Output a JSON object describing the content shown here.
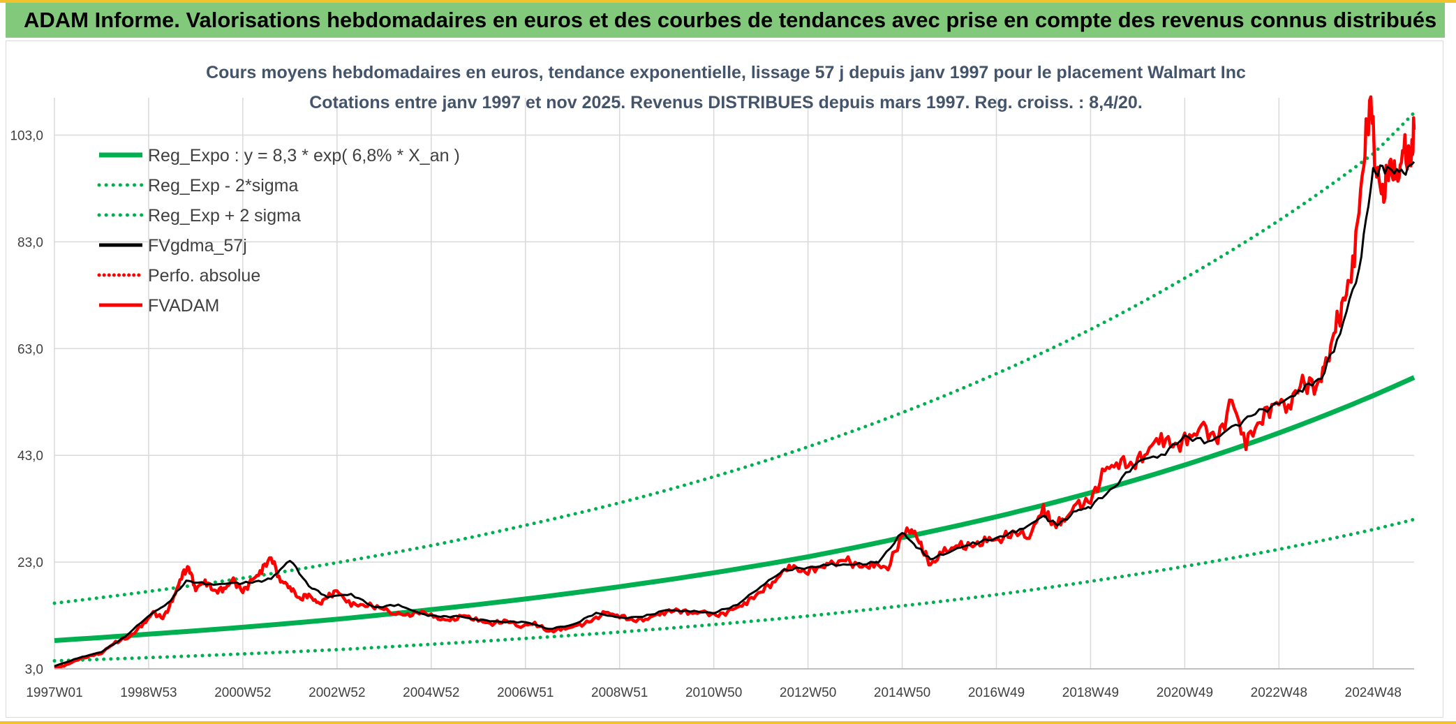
{
  "banner": {
    "title": "ADAM Informe. Valorisations hebdomadaires en euros et des courbes de tendances avec prise en compte des revenus connus distribués"
  },
  "colors": {
    "banner_bg": "#82c97b",
    "frame_accent": "#f2c12e",
    "reg_green": "#00b050",
    "smooth_black": "#000000",
    "adam_red": "#ff0000",
    "title_text": "#44546a",
    "grid": "#d9d9d9"
  },
  "chart_data": {
    "type": "line",
    "title": "Cours moyens hebdomadaires en euros, tendance exponentielle, lissage 57 j depuis janv 1997 pour le placement Walmart Inc",
    "subtitle": "Cotations entre janv 1997 et nov 2025. Revenus DISTRIBUES depuis mars 1997. Reg. croiss. : 8,4/20.",
    "xlabel": "",
    "ylabel": "",
    "xlim": [
      1997.0,
      2025.87
    ],
    "ylim": [
      3.0,
      110.0
    ],
    "yticks": [
      "3,0",
      "23,0",
      "43,0",
      "63,0",
      "83,0",
      "103,0"
    ],
    "ytick_values": [
      3,
      23,
      43,
      63,
      83,
      103
    ],
    "xticks": [
      "1997W01",
      "1998W53",
      "2000W52",
      "2002W52",
      "2004W52",
      "2006W51",
      "2008W51",
      "2010W50",
      "2012W50",
      "2014W50",
      "2016W49",
      "2018W49",
      "2020W49",
      "2022W48",
      "2024W48"
    ],
    "xtick_values": [
      1997.0,
      1999.0,
      2001.0,
      2003.0,
      2005.0,
      2007.0,
      2009.0,
      2011.0,
      2013.0,
      2015.0,
      2017.0,
      2019.0,
      2021.0,
      2023.0,
      2025.0
    ],
    "grid": true,
    "legend_position": "top-left",
    "series": [
      {
        "name": "Reg_Expo : y = 8,3 * exp( 6,8% *  X_an )",
        "style": "solid-green",
        "x": [
          1997.0,
          1999.0,
          2001.0,
          2003.0,
          2005.0,
          2007.0,
          2009.0,
          2011.0,
          2013.0,
          2015.0,
          2017.0,
          2019.0,
          2021.0,
          2023.0,
          2025.0,
          2025.87
        ],
        "values": [
          8.3,
          9.5,
          10.8,
          12.3,
          14.1,
          16.1,
          18.4,
          21.0,
          24.0,
          27.6,
          31.5,
          36.0,
          41.2,
          47.2,
          54.2,
          57.6
        ]
      },
      {
        "name": "Reg_Exp - 2*sigma",
        "style": "dotted-green",
        "x": [
          1997.0,
          1999.0,
          2001.0,
          2003.0,
          2005.0,
          2007.0,
          2009.0,
          2011.0,
          2013.0,
          2015.0,
          2017.0,
          2019.0,
          2021.0,
          2023.0,
          2025.0,
          2025.87
        ],
        "values": [
          4.5,
          5.1,
          5.8,
          6.6,
          7.6,
          8.7,
          9.9,
          11.3,
          12.9,
          14.8,
          16.9,
          19.4,
          22.2,
          25.4,
          29.1,
          31.0
        ]
      },
      {
        "name": "Reg_Exp + 2 sigma",
        "style": "dotted-green",
        "x": [
          1997.0,
          1999.0,
          2001.0,
          2003.0,
          2005.0,
          2007.0,
          2009.0,
          2011.0,
          2013.0,
          2015.0,
          2017.0,
          2019.0,
          2021.0,
          2023.0,
          2025.0,
          2025.87
        ],
        "values": [
          15.3,
          17.5,
          20.0,
          22.9,
          26.1,
          29.9,
          34.1,
          39.0,
          44.6,
          51.0,
          58.3,
          66.6,
          76.2,
          87.0,
          99.5,
          107.2
        ]
      },
      {
        "name": "FVgdma_57j",
        "style": "solid-black",
        "x": [
          1997.0,
          1997.5,
          1998.0,
          1998.5,
          1999.0,
          1999.4,
          1999.8,
          2000.3,
          2000.8,
          2001.2,
          2001.6,
          2002.0,
          2002.4,
          2002.8,
          2003.3,
          2003.8,
          2004.3,
          2004.8,
          2005.2,
          2005.6,
          2006.0,
          2006.5,
          2007.0,
          2007.5,
          2008.0,
          2008.5,
          2009.0,
          2009.5,
          2010.0,
          2010.5,
          2011.0,
          2011.5,
          2012.0,
          2012.5,
          2013.0,
          2013.5,
          2014.0,
          2014.5,
          2015.0,
          2015.3,
          2015.6,
          2016.0,
          2016.5,
          2017.0,
          2017.5,
          2018.0,
          2018.3,
          2018.7,
          2019.0,
          2019.5,
          2020.0,
          2020.5,
          2021.0,
          2021.5,
          2022.0,
          2022.5,
          2023.0,
          2023.5,
          2023.9,
          2024.3,
          2024.7,
          2025.0,
          2025.3,
          2025.6,
          2025.87
        ],
        "values": [
          3.5,
          5.0,
          6.2,
          9.0,
          13.0,
          15.2,
          19.5,
          18.8,
          19.0,
          19.2,
          19.8,
          23.5,
          18.5,
          16.5,
          17.0,
          14.5,
          15.0,
          13.2,
          12.8,
          12.8,
          12.2,
          11.8,
          11.8,
          10.5,
          11.2,
          13.5,
          12.5,
          12.8,
          14.0,
          13.8,
          13.5,
          15.0,
          18.5,
          21.5,
          22.0,
          22.5,
          22.5,
          23.0,
          28.5,
          26.0,
          23.5,
          25.0,
          26.5,
          27.5,
          29.0,
          31.5,
          30.0,
          32.5,
          33.5,
          37.0,
          42.0,
          43.0,
          46.5,
          45.5,
          48.0,
          51.0,
          52.5,
          55.5,
          57.5,
          66.0,
          78.0,
          96.0,
          97.0,
          95.5,
          98.0
        ]
      },
      {
        "name": "Perfo. absolue",
        "style": "dotted-red",
        "x": [],
        "values": []
      },
      {
        "name": "FVADAM",
        "style": "solid-red",
        "x": [
          1997.0,
          1997.2,
          1997.5,
          1997.8,
          1998.0,
          1998.3,
          1998.6,
          1998.9,
          1999.1,
          1999.3,
          1999.5,
          1999.7,
          1999.85,
          2000.0,
          2000.2,
          2000.4,
          2000.6,
          2000.8,
          2001.0,
          2001.2,
          2001.4,
          2001.6,
          2001.8,
          2002.0,
          2002.2,
          2002.4,
          2002.6,
          2002.8,
          2003.0,
          2003.3,
          2003.6,
          2003.9,
          2004.2,
          2004.5,
          2004.8,
          2005.1,
          2005.4,
          2005.7,
          2006.0,
          2006.3,
          2006.6,
          2006.9,
          2007.2,
          2007.5,
          2007.8,
          2008.1,
          2008.4,
          2008.7,
          2009.0,
          2009.3,
          2009.6,
          2009.9,
          2010.2,
          2010.5,
          2010.8,
          2011.1,
          2011.4,
          2011.7,
          2012.0,
          2012.3,
          2012.6,
          2012.9,
          2013.2,
          2013.5,
          2013.8,
          2014.1,
          2014.4,
          2014.7,
          2015.0,
          2015.2,
          2015.4,
          2015.6,
          2015.9,
          2016.2,
          2016.5,
          2016.8,
          2017.1,
          2017.4,
          2017.7,
          2018.0,
          2018.2,
          2018.4,
          2018.7,
          2019.0,
          2019.3,
          2019.6,
          2019.9,
          2020.2,
          2020.5,
          2020.8,
          2021.1,
          2021.4,
          2021.7,
          2022.0,
          2022.3,
          2022.6,
          2022.9,
          2023.2,
          2023.5,
          2023.8,
          2024.0,
          2024.2,
          2024.4,
          2024.6,
          2024.8,
          2024.95,
          2025.05,
          2025.2,
          2025.35,
          2025.5,
          2025.65,
          2025.8,
          2025.87
        ],
        "values": [
          3.2,
          3.5,
          4.8,
          5.5,
          6.0,
          8.0,
          9.0,
          11.5,
          13.5,
          12.5,
          15.5,
          20.5,
          22.0,
          18.0,
          19.5,
          17.5,
          18.0,
          19.5,
          17.5,
          19.5,
          21.5,
          24.0,
          19.5,
          18.5,
          16.0,
          17.0,
          15.0,
          16.5,
          17.5,
          15.0,
          15.0,
          14.5,
          13.5,
          13.0,
          13.8,
          12.5,
          12.0,
          13.0,
          12.0,
          11.5,
          12.0,
          11.0,
          11.5,
          10.0,
          10.5,
          11.0,
          12.0,
          13.5,
          13.0,
          12.0,
          12.5,
          13.5,
          14.0,
          13.5,
          13.5,
          13.0,
          14.0,
          15.5,
          17.5,
          19.5,
          22.5,
          21.0,
          22.0,
          22.5,
          23.5,
          22.0,
          22.5,
          22.0,
          28.0,
          29.5,
          26.0,
          22.5,
          25.0,
          26.0,
          26.0,
          27.0,
          27.5,
          28.5,
          28.0,
          33.0,
          30.0,
          30.5,
          33.5,
          34.5,
          40.0,
          42.0,
          41.0,
          44.0,
          46.5,
          44.5,
          46.5,
          48.0,
          46.0,
          53.0,
          45.5,
          49.5,
          53.0,
          52.5,
          56.5,
          56.0,
          59.5,
          67.0,
          72.0,
          80.0,
          99.0,
          110.0,
          98.0,
          91.0,
          98.0,
          94.0,
          100.0,
          98.0,
          104.0
        ]
      }
    ]
  }
}
